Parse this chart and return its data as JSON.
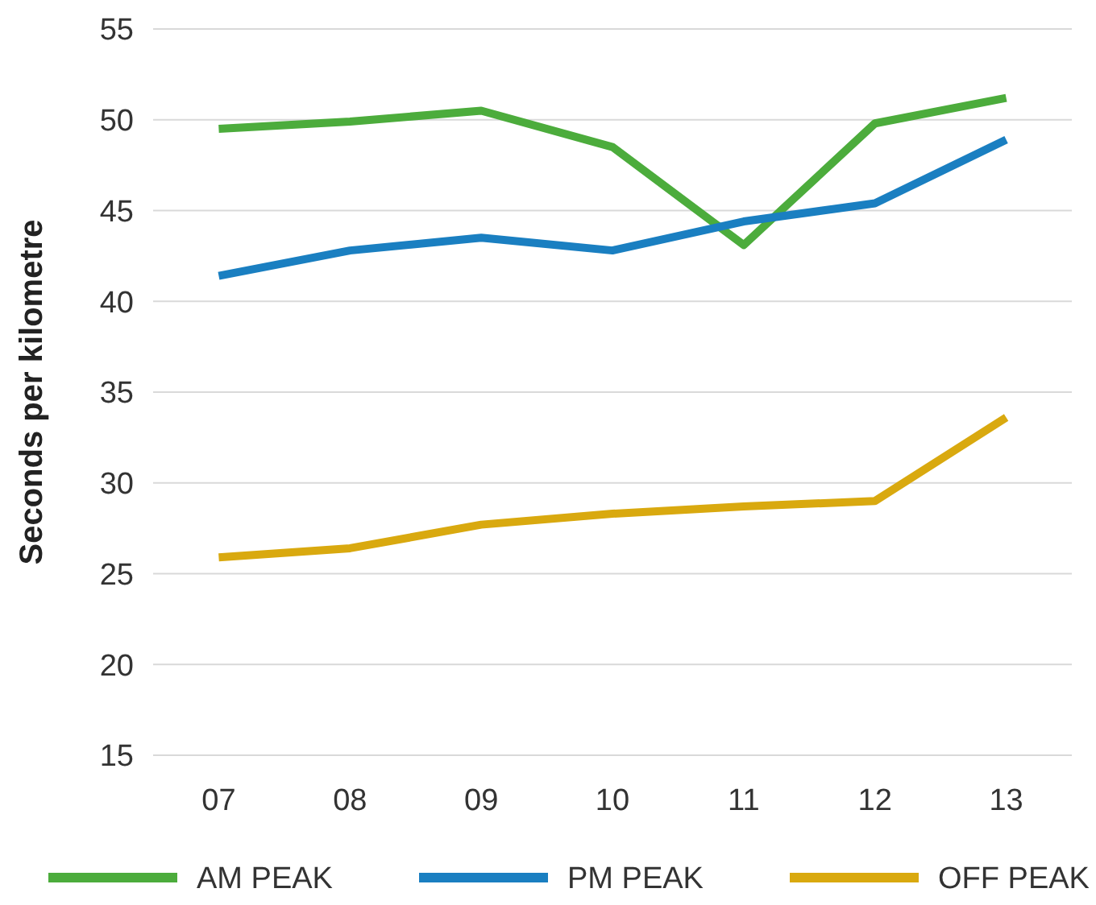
{
  "chart_data": {
    "type": "line",
    "ylabel": "Seconds per kilometre",
    "categories": [
      "07",
      "08",
      "09",
      "10",
      "11",
      "12",
      "13"
    ],
    "series": [
      {
        "name": "AM PEAK",
        "color": "#4cac3c",
        "values": [
          49.5,
          49.9,
          50.5,
          48.5,
          43.1,
          49.8,
          51.2
        ]
      },
      {
        "name": "PM PEAK",
        "color": "#1a7fc1",
        "values": [
          41.4,
          42.8,
          43.5,
          42.8,
          44.4,
          45.4,
          48.9
        ]
      },
      {
        "name": "OFF PEAK",
        "color": "#d9a90f",
        "values": [
          25.9,
          26.4,
          27.7,
          28.3,
          28.7,
          29.0,
          33.6
        ]
      }
    ],
    "ylim": [
      15,
      55
    ],
    "yticks": [
      15,
      20,
      25,
      30,
      35,
      40,
      45,
      50,
      55
    ],
    "grid": "y",
    "legend": "bottom",
    "marker": "none",
    "line_style": "solid"
  }
}
